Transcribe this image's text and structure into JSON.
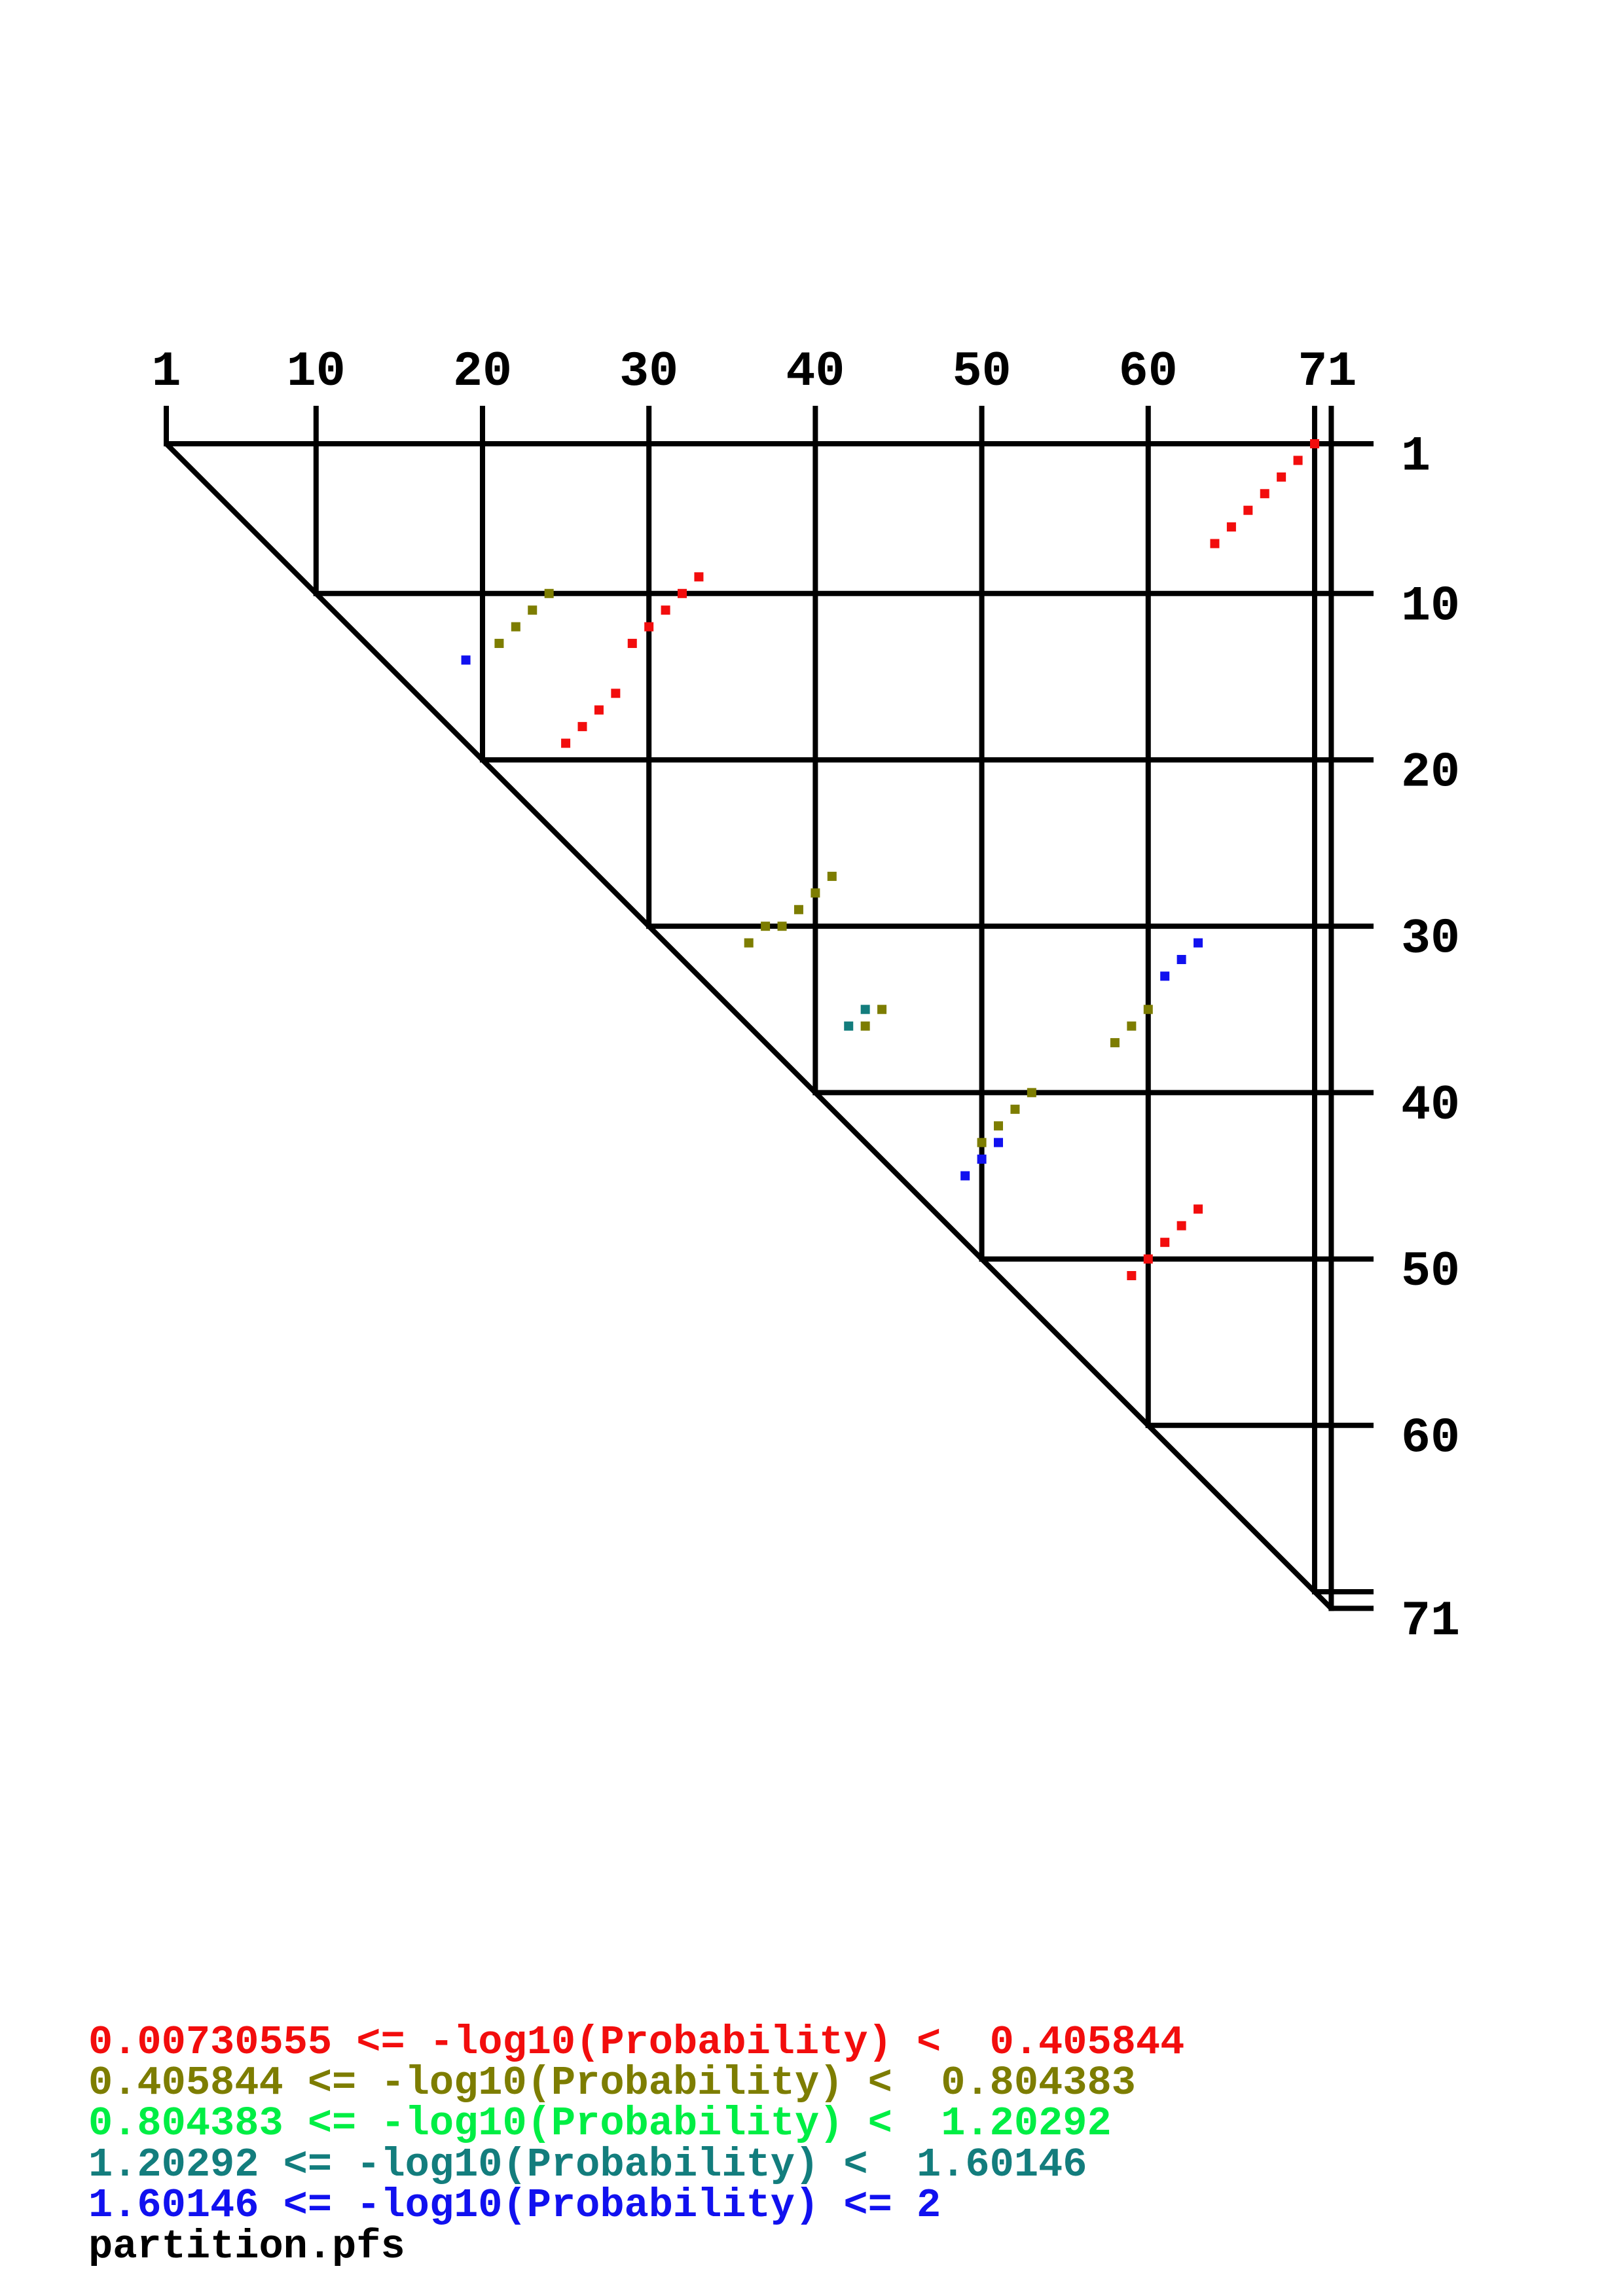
{
  "chart_data": {
    "type": "scatter",
    "subtype": "rna-base-pair-probability-dot-plot",
    "title": "partition.pfs",
    "sequence_length": 71,
    "points_format": "[row i, column j] on an upper-triangular matrix; dot drawn at column j (top axis) and row i (right axis)",
    "x_axis": {
      "position": "top",
      "tick_labels": [
        "1",
        "10",
        "20",
        "30",
        "40",
        "50",
        "60",
        "71"
      ],
      "tick_positions": [
        1,
        10,
        20,
        30,
        40,
        50,
        60,
        71
      ],
      "range": [
        1,
        71
      ]
    },
    "y_axis": {
      "position": "right",
      "tick_labels": [
        "1",
        "10",
        "20",
        "30",
        "40",
        "50",
        "60",
        "71"
      ],
      "tick_positions": [
        1,
        10,
        20,
        30,
        40,
        50,
        60,
        71
      ],
      "range": [
        1,
        71
      ]
    },
    "grid": true,
    "legend_position": "bottom-left",
    "series": [
      {
        "name": "0.00730555 <= -log10(Probability) <  0.405844",
        "color": "#f20d0d",
        "points": [
          [
            1,
            70
          ],
          [
            2,
            69
          ],
          [
            3,
            68
          ],
          [
            4,
            67
          ],
          [
            5,
            66
          ],
          [
            6,
            65
          ],
          [
            7,
            64
          ],
          [
            9,
            33
          ],
          [
            10,
            32
          ],
          [
            11,
            31
          ],
          [
            12,
            30
          ],
          [
            13,
            29
          ],
          [
            16,
            28
          ],
          [
            17,
            27
          ],
          [
            18,
            26
          ],
          [
            19,
            25
          ],
          [
            47,
            63
          ],
          [
            48,
            62
          ],
          [
            49,
            61
          ],
          [
            50,
            60
          ],
          [
            51,
            59
          ]
        ]
      },
      {
        "name": "0.405844 <= -log10(Probability) <  0.804383",
        "color": "#7d7d01",
        "points": [
          [
            10,
            24
          ],
          [
            11,
            23
          ],
          [
            12,
            22
          ],
          [
            13,
            21
          ],
          [
            27,
            41
          ],
          [
            28,
            40
          ],
          [
            29,
            39
          ],
          [
            30,
            38
          ],
          [
            30,
            37
          ],
          [
            31,
            36
          ],
          [
            35,
            44
          ],
          [
            36,
            43
          ],
          [
            35,
            60
          ],
          [
            36,
            59
          ],
          [
            37,
            58
          ],
          [
            40,
            53
          ],
          [
            41,
            52
          ],
          [
            42,
            51
          ],
          [
            43,
            50
          ]
        ]
      },
      {
        "name": "0.804383 <= -log10(Probability) <  1.20292",
        "color": "#00ee44",
        "points": []
      },
      {
        "name": "1.20292 <= -log10(Probability) <  1.60146",
        "color": "#137d7d",
        "points": [
          [
            35,
            43
          ],
          [
            36,
            42
          ]
        ]
      },
      {
        "name": "1.60146 <= -log10(Probability) <= 2",
        "color": "#1111ef",
        "points": [
          [
            14,
            19
          ],
          [
            31,
            63
          ],
          [
            32,
            62
          ],
          [
            33,
            61
          ],
          [
            43,
            51
          ],
          [
            44,
            50
          ],
          [
            45,
            49
          ]
        ]
      }
    ]
  },
  "legend": {
    "entries": [
      {
        "text": "0.00730555 <= -log10(Probability) <  0.405844",
        "color": "#f20d0d"
      },
      {
        "text": "0.405844 <= -log10(Probability) <  0.804383",
        "color": "#7d7d01"
      },
      {
        "text": "0.804383 <= -log10(Probability) <  1.20292",
        "color": "#00ee44"
      },
      {
        "text": "1.20292 <= -log10(Probability) <  1.60146",
        "color": "#137d7d"
      },
      {
        "text": "1.60146 <= -log10(Probability) <= 2",
        "color": "#1111ef"
      }
    ],
    "filename_label": "partition.pfs"
  },
  "colors": {
    "axis_and_grid": "#000000",
    "background": "#ffffff"
  }
}
